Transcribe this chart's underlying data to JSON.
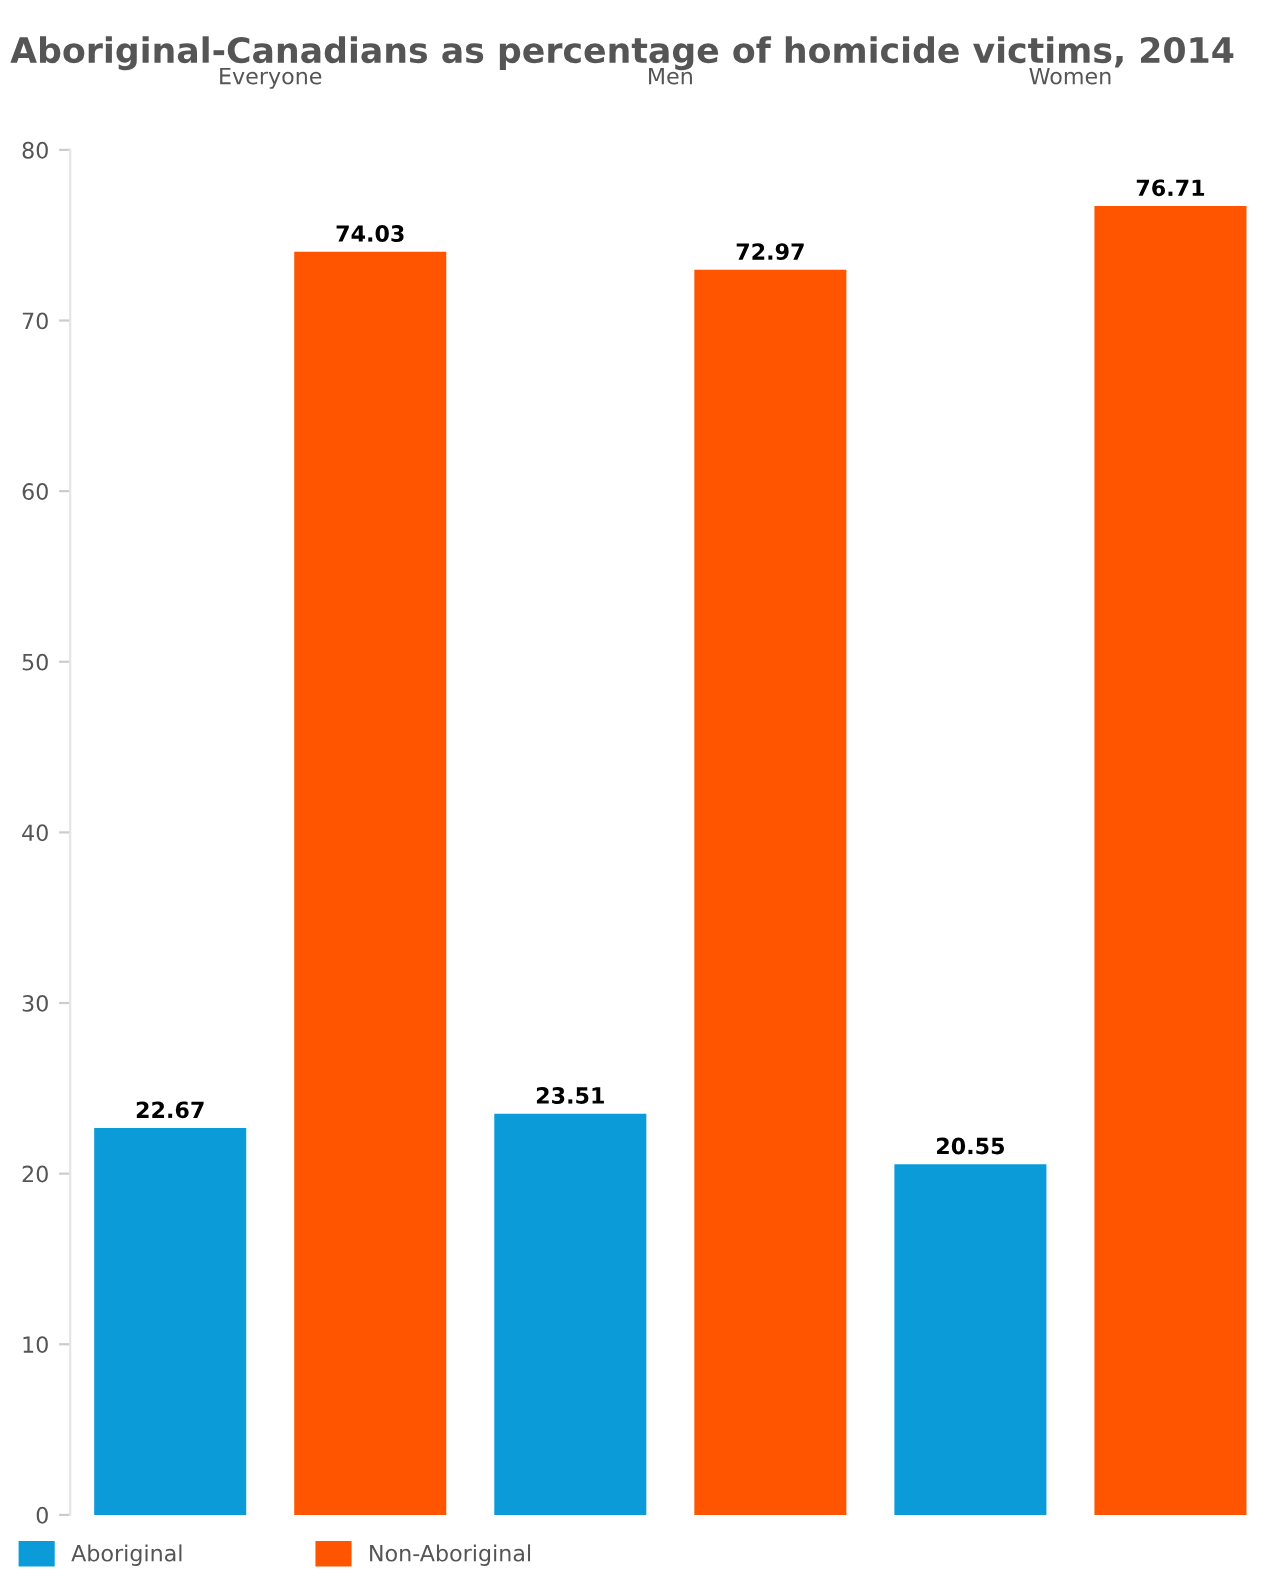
{
  "chart_data": {
    "type": "bar",
    "title": "Aboriginal-Canadians as percentage of homicide victims, 2014",
    "categories": [
      "Everyone",
      "Men",
      "Women"
    ],
    "series": [
      {
        "name": "Aboriginal",
        "color": "#0a9bd8",
        "values": [
          22.67,
          23.51,
          20.55
        ]
      },
      {
        "name": "Non-Aboriginal",
        "color": "#ff5500",
        "values": [
          74.03,
          72.97,
          76.71
        ]
      }
    ],
    "ylim": [
      0,
      80
    ],
    "yticks": [
      0,
      10,
      20,
      30,
      40,
      50,
      60,
      70,
      80
    ],
    "grid": false,
    "legend": "bottom left",
    "data_labels": true
  }
}
